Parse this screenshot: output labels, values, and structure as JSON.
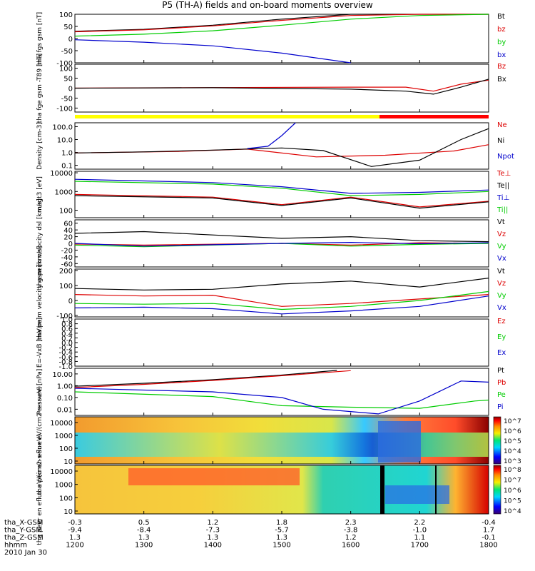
{
  "title": "P5 (TH-A) fields and on-board moments overview",
  "footer": {
    "rows": [
      {
        "label": "tha_X-GSM",
        "values": [
          "-0.3",
          "0.5",
          "1.2",
          "1.8",
          "2.3",
          "2.2",
          "-0.4"
        ]
      },
      {
        "label": "tha_Y-GSM",
        "values": [
          "-9.4",
          "-8.4",
          "-7.3",
          "-5.7",
          "-3.8",
          "-1.0",
          "1.7"
        ]
      },
      {
        "label": "tha_Z-GSM",
        "values": [
          "1.3",
          "1.3",
          "1.3",
          "1.3",
          "1.2",
          "1.1",
          "-0.1"
        ]
      },
      {
        "label": "hhmm",
        "values": [
          "1200",
          "1300",
          "1400",
          "1500",
          "1600",
          "1700",
          "1800"
        ]
      }
    ],
    "date": "2010 Jan 30"
  },
  "chart_data": [
    {
      "type": "line",
      "panel": "fgs",
      "ylabel": "tha fgs gsm [nT]",
      "ylim": [
        -100,
        100
      ],
      "yticks": [
        "100",
        "50",
        "0",
        "-50",
        "-100"
      ],
      "series": [
        {
          "name": "Bt",
          "color": "#000000",
          "x": [
            1200,
            1300,
            1400,
            1500,
            1600,
            1700,
            1800
          ],
          "y": [
            30,
            38,
            55,
            80,
            100,
            100,
            100
          ]
        },
        {
          "name": "bz",
          "color": "#dd0000",
          "x": [
            1200,
            1300,
            1400,
            1500,
            1600,
            1700,
            1800
          ],
          "y": [
            28,
            36,
            52,
            75,
            95,
            100,
            100
          ]
        },
        {
          "name": "by",
          "color": "#00cc00",
          "x": [
            1200,
            1300,
            1400,
            1500,
            1600,
            1700,
            1800
          ],
          "y": [
            10,
            18,
            32,
            55,
            80,
            95,
            100
          ]
        },
        {
          "name": "bx",
          "color": "#0000cc",
          "x": [
            1200,
            1300,
            1400,
            1500,
            1600
          ],
          "y": [
            -5,
            -15,
            -30,
            -60,
            -100
          ]
        }
      ]
    },
    {
      "type": "line",
      "panel": "fge",
      "ylabel": "tha fge gsm -T89 [nT]",
      "ylim": [
        -120,
        120
      ],
      "yticks": [
        "100",
        "50",
        "0",
        "-50",
        "-100"
      ],
      "series": [
        {
          "name": "Bz",
          "color": "#dd0000",
          "x": [
            1200,
            1400,
            1600,
            1680,
            1720,
            1760,
            1800
          ],
          "y": [
            0,
            3,
            5,
            5,
            -15,
            20,
            40
          ]
        },
        {
          "name": "Bx",
          "color": "#000000",
          "x": [
            1200,
            1400,
            1600,
            1680,
            1720,
            1760,
            1800
          ],
          "y": [
            0,
            2,
            -5,
            -15,
            -30,
            5,
            45
          ]
        }
      ]
    },
    {
      "type": "line",
      "panel": "density",
      "scale": "log",
      "ylabel": "Density [cm-3]",
      "ylim": [
        0.05,
        200
      ],
      "yticks": [
        "100.0",
        "10.0",
        "1.0",
        "0.1"
      ],
      "series": [
        {
          "name": "Ne",
          "color": "#dd0000",
          "x": [
            1200,
            1350,
            1450,
            1550,
            1650,
            1750,
            1800
          ],
          "y": [
            0.9,
            1.2,
            1.8,
            0.45,
            0.6,
            1.3,
            4
          ]
        },
        {
          "name": "Ni",
          "color": "#000000",
          "x": [
            1200,
            1300,
            1400,
            1500,
            1560,
            1630,
            1700,
            1760,
            1800
          ],
          "y": [
            0.9,
            1.1,
            1.5,
            2.2,
            1.4,
            0.08,
            0.25,
            10,
            70
          ]
        },
        {
          "name": "Npot",
          "color": "#0000cc",
          "x": [
            1450,
            1480,
            1500,
            1520
          ],
          "y": [
            2,
            3,
            20,
            200
          ]
        }
      ]
    },
    {
      "type": "line",
      "panel": "temperature",
      "scale": "log",
      "ylabel": "magt3 [eV]",
      "ylim": [
        40,
        12000
      ],
      "yticks": [
        "10000",
        "1000",
        "100"
      ],
      "series": [
        {
          "name": "Te⊥",
          "color": "#dd0000",
          "x": [
            1200,
            1400,
            1500,
            1600,
            1700,
            1800
          ],
          "y": [
            700,
            500,
            200,
            500,
            150,
            300
          ]
        },
        {
          "name": "Te||",
          "color": "#000000",
          "x": [
            1200,
            1400,
            1500,
            1600,
            1700,
            1800
          ],
          "y": [
            600,
            450,
            180,
            450,
            130,
            280
          ]
        },
        {
          "name": "Ti⊥",
          "color": "#0000cc",
          "x": [
            1200,
            1400,
            1500,
            1600,
            1700,
            1800
          ],
          "y": [
            4500,
            3000,
            1800,
            800,
            900,
            1200
          ]
        },
        {
          "name": "Ti||",
          "color": "#00cc00",
          "x": [
            1200,
            1400,
            1500,
            1600,
            1700,
            1800
          ],
          "y": [
            3500,
            2500,
            1500,
            600,
            700,
            1000
          ]
        }
      ]
    },
    {
      "type": "line",
      "panel": "esa-velocity",
      "ylabel": "tha peim velocity dsl [km/s]",
      "ylim": [
        -70,
        70
      ],
      "yticks": [
        "60",
        "40",
        "20",
        "0",
        "-20",
        "-40",
        "-60"
      ],
      "series": [
        {
          "name": "Vt",
          "color": "#000000",
          "x": [
            1200,
            1300,
            1500,
            1600,
            1700,
            1800
          ],
          "y": [
            30,
            35,
            15,
            20,
            8,
            5
          ]
        },
        {
          "name": "Vz",
          "color": "#dd0000",
          "x": [
            1200,
            1300,
            1500,
            1600,
            1700,
            1800
          ],
          "y": [
            -2,
            -5,
            0,
            -5,
            2,
            0
          ]
        },
        {
          "name": "Vy",
          "color": "#00cc00",
          "x": [
            1200,
            1300,
            1500,
            1600,
            1700,
            1800
          ],
          "y": [
            -5,
            -10,
            0,
            -8,
            -3,
            0
          ]
        },
        {
          "name": "Vx",
          "color": "#0000cc",
          "x": [
            1200,
            1300,
            1500,
            1600,
            1700,
            1800
          ],
          "y": [
            0,
            -8,
            0,
            3,
            -1,
            2
          ]
        }
      ]
    },
    {
      "type": "line",
      "panel": "gsm-velocity",
      "ylabel": "tha peim velocity gsm [km/s]",
      "ylim": [
        -110,
        210
      ],
      "yticks": [
        "200",
        "100",
        "0",
        "-100"
      ],
      "series": [
        {
          "name": "Vt",
          "color": "#000000",
          "x": [
            1200,
            1300,
            1400,
            1500,
            1600,
            1700,
            1800
          ],
          "y": [
            80,
            70,
            75,
            110,
            130,
            90,
            150
          ]
        },
        {
          "name": "Vz",
          "color": "#dd0000",
          "x": [
            1200,
            1300,
            1400,
            1500,
            1600,
            1700,
            1800
          ],
          "y": [
            40,
            30,
            35,
            -40,
            -20,
            10,
            40
          ]
        },
        {
          "name": "Vy",
          "color": "#00cc00",
          "x": [
            1200,
            1300,
            1400,
            1500,
            1600,
            1700,
            1800
          ],
          "y": [
            -20,
            -25,
            -20,
            -60,
            -40,
            0,
            60
          ]
        },
        {
          "name": "Vx",
          "color": "#0000cc",
          "x": [
            1200,
            1300,
            1400,
            1500,
            1600,
            1700,
            1800
          ],
          "y": [
            -50,
            -45,
            -55,
            -90,
            -70,
            -40,
            30
          ]
        }
      ]
    },
    {
      "type": "line",
      "panel": "efield",
      "ylabel": "E=-VxB [mV/m]",
      "ylim": [
        -1,
        1
      ],
      "yticks": [
        "1.0",
        "0.8",
        "0.6",
        "0.4",
        "0.2",
        "0.0",
        "-0.2",
        "-0.4",
        "-0.6",
        "-0.8",
        "-1.0"
      ],
      "series": [
        {
          "name": "Ez",
          "color": "#dd0000",
          "x": [],
          "y": []
        },
        {
          "name": "Ey",
          "color": "#00cc00",
          "x": [],
          "y": []
        },
        {
          "name": "Ex",
          "color": "#0000cc",
          "x": [],
          "y": []
        }
      ]
    },
    {
      "type": "line",
      "panel": "pressure",
      "scale": "log",
      "ylabel": "Pressure [nPa]",
      "ylim": [
        0.003,
        30
      ],
      "yticks": [
        "10.00",
        "1.00",
        "0.10",
        "0.01"
      ],
      "series": [
        {
          "name": "Pt",
          "color": "#000000",
          "x": [
            1200,
            1300,
            1400,
            1500,
            1580
          ],
          "y": [
            0.9,
            1.6,
            3.2,
            8,
            20
          ]
        },
        {
          "name": "Pb",
          "color": "#dd0000",
          "x": [
            1200,
            1300,
            1400,
            1500,
            1600
          ],
          "y": [
            0.7,
            1.3,
            2.8,
            7,
            19
          ]
        },
        {
          "name": "Pe",
          "color": "#00cc00",
          "x": [
            1200,
            1400,
            1500,
            1600,
            1700,
            1780,
            1800
          ],
          "y": [
            0.3,
            0.12,
            0.02,
            0.015,
            0.012,
            0.05,
            0.06
          ]
        },
        {
          "name": "Pi",
          "color": "#0000cc",
          "x": [
            1200,
            1400,
            1500,
            1560,
            1640,
            1700,
            1760,
            1800
          ],
          "y": [
            0.6,
            0.3,
            0.1,
            0.01,
            0.004,
            0.05,
            2.5,
            2
          ]
        }
      ]
    },
    {
      "type": "heatmap",
      "panel": "ion-spectrogram",
      "ylabel": "tha peir en eflux eV/(cm2-s-sr-eV)",
      "yticks": [
        "10000",
        "1000",
        "100",
        "10"
      ],
      "colorbar_ticks": [
        "10^7",
        "10^6",
        "10^5",
        "10^4",
        "10^3"
      ]
    },
    {
      "type": "heatmap",
      "panel": "electron-spectrogram",
      "ylabel": "tha peer en eflux eV/(cm2-s-sr-eV)",
      "yticks": [
        "10000",
        "1000",
        "100",
        "10"
      ],
      "colorbar_ticks": [
        "10^8",
        "10^7",
        "10^6",
        "10^5",
        "10^4"
      ]
    }
  ]
}
